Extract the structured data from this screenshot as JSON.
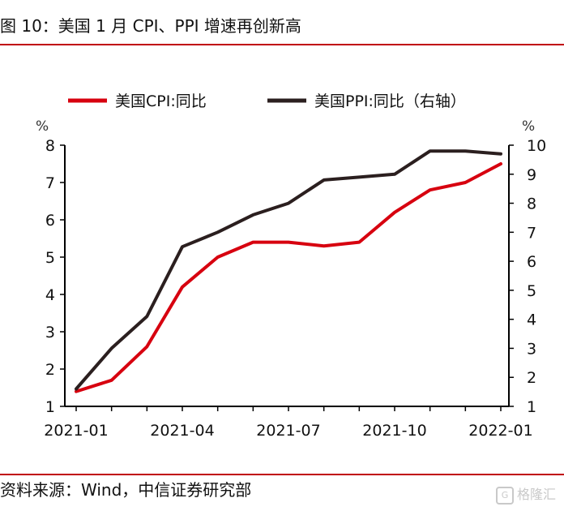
{
  "header": {
    "title": "图 10：美国 1 月 CPI、PPI 增速再创新高"
  },
  "footer": {
    "source": "资料来源：Wind，中信证券研究部"
  },
  "watermark": {
    "text": "格隆汇"
  },
  "chart_data": {
    "type": "line",
    "x": [
      "2021-01",
      "2021-02",
      "2021-03",
      "2021-04",
      "2021-05",
      "2021-06",
      "2021-07",
      "2021-08",
      "2021-09",
      "2021-10",
      "2021-11",
      "2021-12",
      "2022-01"
    ],
    "x_tick_labels": [
      "2021-01",
      "2021-04",
      "2021-07",
      "2021-10",
      "2022-01"
    ],
    "left_axis": {
      "unit": "%",
      "ylim": [
        1,
        8
      ],
      "ticks": [
        "1",
        "2",
        "3",
        "4",
        "5",
        "6",
        "7",
        "8"
      ]
    },
    "right_axis": {
      "unit": "%",
      "ylim": [
        1,
        10
      ],
      "ticks": [
        "1",
        "2",
        "3",
        "4",
        "5",
        "6",
        "7",
        "8",
        "9",
        "10"
      ]
    },
    "legend_position": "top",
    "grid": false,
    "series": [
      {
        "name": "美国CPI:同比",
        "axis": "left",
        "color": "#d7000f",
        "values": [
          1.4,
          1.7,
          2.6,
          4.2,
          5.0,
          5.4,
          5.4,
          5.3,
          5.4,
          6.2,
          6.8,
          7.0,
          7.5
        ]
      },
      {
        "name": "美国PPI:同比（右轴）",
        "axis": "right",
        "color": "#2b1f1f",
        "values": [
          1.6,
          3.0,
          4.1,
          6.5,
          7.0,
          7.6,
          8.0,
          8.8,
          8.9,
          9.0,
          9.8,
          9.8,
          9.7
        ]
      }
    ]
  }
}
